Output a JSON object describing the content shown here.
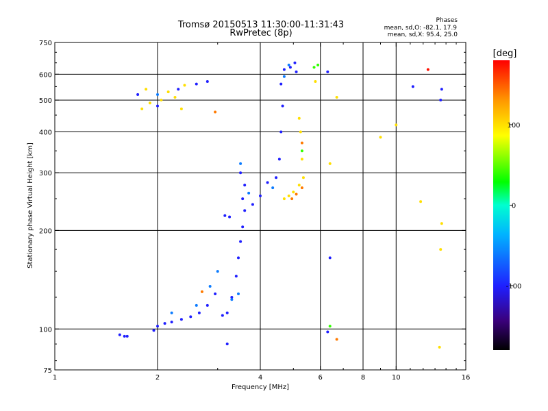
{
  "chart_data": {
    "type": "scatter",
    "title": "Tromsø 20150513 11:30:00-11:31:43",
    "subtitle": "RwPretec (8p)",
    "xlabel": "Frequency [MHz]",
    "ylabel": "Stationary phase Virtual Height [km]",
    "x_scale": "log",
    "y_scale": "log",
    "xlim": [
      1,
      16
    ],
    "ylim": [
      75,
      750
    ],
    "x_ticks": [
      1,
      2,
      4,
      6,
      8,
      10,
      16
    ],
    "x_tick_labels": [
      "1",
      "2",
      "4",
      "6",
      "8",
      "10",
      "16"
    ],
    "x_grid": [
      2,
      4,
      6,
      8,
      10
    ],
    "y_ticks": [
      75,
      100,
      200,
      300,
      400,
      500,
      600,
      750
    ],
    "y_tick_labels": [
      "75",
      "100",
      "200",
      "300",
      "400",
      "500",
      "600",
      "750"
    ],
    "y_grid": [
      100,
      200,
      300,
      400,
      500,
      600
    ],
    "grid": true,
    "stats": {
      "header": "Phases",
      "line1": "mean, sd,O: -82.1, 17.9",
      "line2": "mean, sd,X:  95.4, 25.0"
    },
    "colorbar": {
      "label": "[deg]",
      "range": [
        -180,
        180
      ],
      "ticks": [
        100,
        0,
        -100
      ],
      "tick_labels": [
        "100",
        "0",
        "-100"
      ]
    },
    "series": [
      {
        "color_deg": -100,
        "points": [
          [
            1.55,
            96
          ],
          [
            1.6,
            95
          ],
          [
            1.63,
            95
          ],
          [
            1.95,
            99
          ],
          [
            2.0,
            102
          ],
          [
            2.1,
            104
          ],
          [
            2.2,
            105
          ],
          [
            2.35,
            107
          ],
          [
            2.5,
            109
          ],
          [
            2.65,
            112
          ],
          [
            2.8,
            118
          ],
          [
            2.95,
            128
          ],
          [
            3.1,
            110
          ],
          [
            3.2,
            112
          ],
          [
            3.3,
            125
          ],
          [
            3.4,
            145
          ],
          [
            3.45,
            165
          ],
          [
            3.5,
            185
          ],
          [
            3.55,
            205
          ],
          [
            3.6,
            230
          ],
          [
            3.55,
            250
          ],
          [
            3.6,
            275
          ],
          [
            3.5,
            300
          ],
          [
            3.15,
            222
          ],
          [
            3.25,
            220
          ],
          [
            3.8,
            240
          ],
          [
            4.0,
            255
          ],
          [
            4.2,
            280
          ],
          [
            4.45,
            290
          ],
          [
            4.55,
            330
          ],
          [
            4.6,
            400
          ],
          [
            4.65,
            480
          ],
          [
            4.6,
            560
          ],
          [
            4.7,
            620
          ],
          [
            4.9,
            630
          ],
          [
            5.1,
            610
          ],
          [
            5.05,
            650
          ],
          [
            3.2,
            90
          ],
          [
            1.75,
            520
          ],
          [
            2.0,
            480
          ],
          [
            2.3,
            540
          ],
          [
            2.6,
            560
          ],
          [
            2.8,
            570
          ],
          [
            13.6,
            540
          ],
          [
            13.5,
            500
          ],
          [
            11.2,
            550
          ],
          [
            6.3,
            610
          ],
          [
            6.4,
            165
          ],
          [
            6.3,
            98
          ]
        ]
      },
      {
        "color_deg": -60,
        "points": [
          [
            2.2,
            112
          ],
          [
            2.6,
            118
          ],
          [
            2.85,
            135
          ],
          [
            3.0,
            150
          ],
          [
            3.3,
            123
          ],
          [
            3.45,
            128
          ],
          [
            3.7,
            260
          ],
          [
            4.35,
            270
          ],
          [
            4.7,
            590
          ],
          [
            4.85,
            640
          ],
          [
            3.5,
            320
          ],
          [
            2.0,
            520
          ]
        ]
      },
      {
        "color_deg": 100,
        "points": [
          [
            1.8,
            470
          ],
          [
            1.9,
            490
          ],
          [
            2.05,
            500
          ],
          [
            2.15,
            530
          ],
          [
            2.25,
            510
          ],
          [
            1.85,
            540
          ],
          [
            2.4,
            555
          ],
          [
            2.35,
            470
          ],
          [
            4.7,
            250
          ],
          [
            4.85,
            255
          ],
          [
            5.0,
            262
          ],
          [
            5.2,
            275
          ],
          [
            5.35,
            290
          ],
          [
            5.25,
            400
          ],
          [
            5.2,
            440
          ],
          [
            5.3,
            330
          ],
          [
            6.4,
            320
          ],
          [
            6.7,
            510
          ],
          [
            10.0,
            420
          ],
          [
            9.0,
            385
          ],
          [
            11.8,
            245
          ],
          [
            13.6,
            210
          ],
          [
            13.5,
            175
          ],
          [
            13.4,
            88
          ],
          [
            5.8,
            570
          ]
        ]
      },
      {
        "color_deg": 140,
        "points": [
          [
            4.95,
            250
          ],
          [
            5.1,
            258
          ],
          [
            5.3,
            270
          ],
          [
            5.3,
            370
          ],
          [
            6.7,
            93
          ],
          [
            2.95,
            460
          ],
          [
            2.7,
            130
          ]
        ]
      },
      {
        "color_deg": 40,
        "points": [
          [
            5.75,
            630
          ],
          [
            5.9,
            640
          ],
          [
            5.3,
            350
          ],
          [
            6.4,
            102
          ]
        ]
      },
      {
        "color_deg": 175,
        "points": [
          [
            12.4,
            620
          ]
        ]
      }
    ]
  }
}
